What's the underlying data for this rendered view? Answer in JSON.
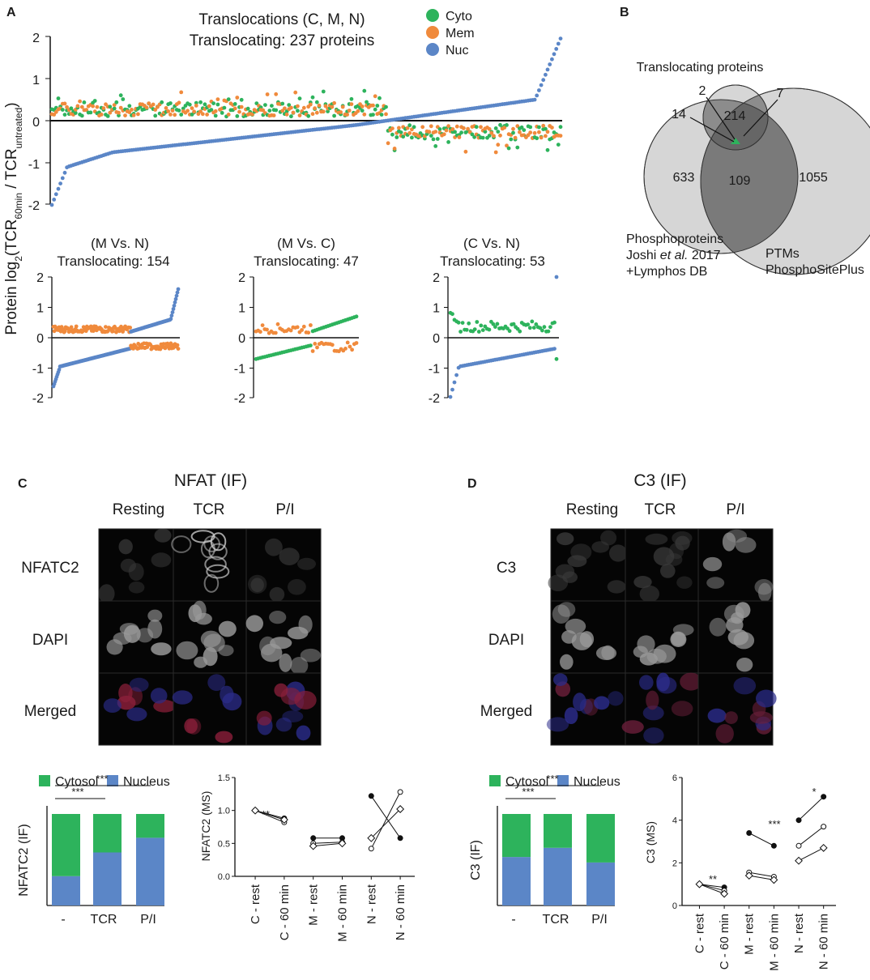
{
  "panels": {
    "a": "A",
    "b": "B",
    "c": "C",
    "d": "D"
  },
  "colors": {
    "cyto": "#2db35c",
    "mem": "#f08a3c",
    "nuc": "#5b86c7",
    "axis": "#111111",
    "venn_light": "#d6d6d6",
    "venn_mid": "#9c9c9c",
    "venn_dark": "#6e6e6e",
    "venn_center": "#2db35c"
  },
  "panel_a": {
    "title_line1": "Translocations (C, M,  N)",
    "title_line2": "Translocating: 237 proteins",
    "legend": [
      "Cyto",
      "Mem",
      "Nuc"
    ],
    "y_axis_label_main": "Protein log",
    "y_axis_label_sub2": "2",
    "y_axis_label_mid": "(TCR",
    "y_axis_label_sub60": "60min",
    "y_axis_label_slash": " / TCR",
    "y_axis_label_subun": "untreated",
    "y_axis_label_close": ")",
    "main_ticks": [
      "2",
      "1",
      "0",
      "-1",
      "-2"
    ],
    "subplots": [
      {
        "title1": "(M Vs. N)",
        "title2": "Translocating: 154",
        "ticks": [
          "2",
          "1",
          "0",
          "-1",
          "-2"
        ]
      },
      {
        "title1": "(M Vs. C)",
        "title2": "Translocating: 47",
        "ticks": [
          "2",
          "1",
          "0",
          "-1",
          "-2"
        ]
      },
      {
        "title1": "(C Vs. N)",
        "title2": "Translocating: 53",
        "ticks": [
          "2",
          "1",
          "0",
          "-1",
          "-2"
        ]
      }
    ]
  },
  "panel_b": {
    "title": "Translocating proteins",
    "n_214": "214",
    "n_2": "2",
    "n_7": "7",
    "n_14": "14",
    "n_633": "633",
    "n_109": "109",
    "n_1055": "1055",
    "left_label1": "Phosphoproteins",
    "left_label2a": "Joshi ",
    "left_label2b": "et al.",
    "left_label2c": " 2017",
    "left_label3": "+Lymphos DB",
    "right_label1": "PTMs",
    "right_label2": "PhosphoSitePlus"
  },
  "panel_c": {
    "title": "NFAT (IF)",
    "col_labels": [
      "Resting",
      "TCR",
      "P/I"
    ],
    "row_labels": [
      "NFATC2",
      "DAPI",
      "Merged"
    ],
    "legend_cyto": "Cytosol",
    "legend_nuc": "Nucleus",
    "bar_ylabel": "NFATC2 (IF)",
    "bar_cats": [
      "-",
      "TCR",
      "P/I"
    ],
    "sig1": "***",
    "sig2": "***",
    "ms_ylabel": "NFATC2 (MS)",
    "ms_yticks": [
      "1.5",
      "1.0",
      "0.5",
      "0.0"
    ],
    "ms_xcats": [
      "C - rest",
      "C - 60 min",
      "M - rest",
      "M - 60 min",
      "N - rest",
      "N - 60 min"
    ],
    "ms_sig": "**"
  },
  "panel_d": {
    "title": "C3 (IF)",
    "col_labels": [
      "Resting",
      "TCR",
      "P/I"
    ],
    "row_labels": [
      "C3",
      "DAPI",
      "Merged"
    ],
    "legend_cyto": "Cytosol",
    "legend_nuc": "Nucleus",
    "bar_ylabel": "C3 (IF)",
    "bar_cats": [
      "-",
      "TCR",
      "P/I"
    ],
    "sig1": "***",
    "sig2": "***",
    "ms_ylabel": "C3 (MS)",
    "ms_yticks": [
      "6",
      "4",
      "2",
      "0"
    ],
    "ms_xcats": [
      "C - rest",
      "C - 60 min",
      "M - rest",
      "M - 60 min",
      "N - rest",
      "N - 60 min"
    ],
    "ms_sig1": "**",
    "ms_sig2": "***",
    "ms_sig3": "*"
  },
  "chart_data": [
    {
      "type": "bar",
      "title": "NFATC2 (IF)",
      "categories": [
        "-",
        "TCR",
        "P/I"
      ],
      "series": [
        {
          "name": "Nucleus",
          "values": [
            0.32,
            0.58,
            0.74
          ]
        },
        {
          "name": "Cytosol",
          "values": [
            0.68,
            0.42,
            0.26
          ]
        }
      ],
      "ylim": [
        0,
        1
      ]
    },
    {
      "type": "line",
      "title": "NFATC2 (MS)",
      "ylim": [
        0,
        1.5
      ],
      "categories": [
        "C - rest",
        "C - 60 min",
        "M - rest",
        "M - 60 min",
        "N - rest",
        "N - 60 min"
      ],
      "pairs": [
        {
          "group": "C",
          "values": [
            [
              1.0,
              0.88
            ],
            [
              1.0,
              0.82
            ],
            [
              1.0,
              0.86
            ]
          ]
        },
        {
          "group": "M",
          "values": [
            [
              0.58,
              0.58
            ],
            [
              0.5,
              0.52
            ],
            [
              0.46,
              0.5
            ]
          ]
        },
        {
          "group": "N",
          "values": [
            [
              1.22,
              0.58
            ],
            [
              0.42,
              1.28
            ],
            [
              0.58,
              1.02
            ]
          ]
        }
      ]
    },
    {
      "type": "bar",
      "title": "C3 (IF)",
      "categories": [
        "-",
        "TCR",
        "P/I"
      ],
      "series": [
        {
          "name": "Nucleus",
          "values": [
            0.53,
            0.63,
            0.47
          ]
        },
        {
          "name": "Cytosol",
          "values": [
            0.47,
            0.37,
            0.53
          ]
        }
      ],
      "ylim": [
        0,
        1
      ]
    },
    {
      "type": "line",
      "title": "C3 (MS)",
      "ylim": [
        0,
        6
      ],
      "categories": [
        "C - rest",
        "C - 60 min",
        "M - rest",
        "M - 60 min",
        "N - rest",
        "N - 60 min"
      ],
      "pairs": [
        {
          "group": "C",
          "values": [
            [
              1.0,
              0.85
            ],
            [
              1.0,
              0.7
            ],
            [
              1.0,
              0.55
            ]
          ]
        },
        {
          "group": "M",
          "values": [
            [
              3.4,
              2.8
            ],
            [
              1.55,
              1.35
            ],
            [
              1.4,
              1.2
            ]
          ]
        },
        {
          "group": "N",
          "values": [
            [
              4.0,
              5.1
            ],
            [
              2.8,
              3.7
            ],
            [
              2.1,
              2.7
            ]
          ]
        }
      ]
    }
  ]
}
